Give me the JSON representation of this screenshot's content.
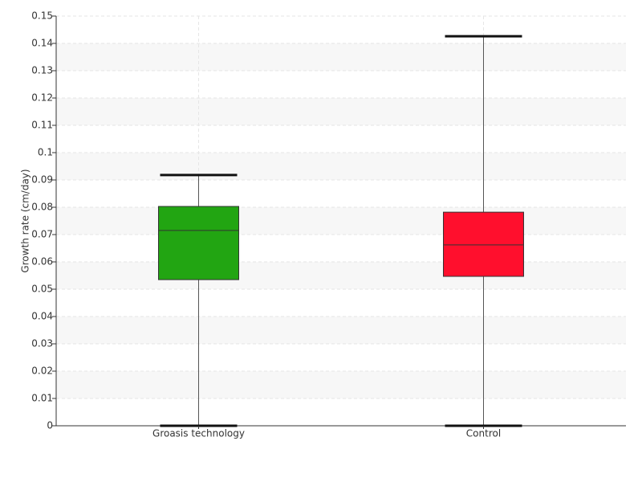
{
  "chart_data": {
    "type": "box",
    "y_label": "Growth rate (cm/day)",
    "categories": [
      "Groasis technology",
      "Control"
    ],
    "boxes": [
      {
        "min": 0,
        "q1": 0.0535,
        "median": 0.0715,
        "q3": 0.0803,
        "max": 0.0918,
        "color": "#22a512"
      },
      {
        "min": 0,
        "q1": 0.0547,
        "median": 0.0662,
        "q3": 0.0782,
        "max": 0.1426,
        "color": "#ff0f2d"
      }
    ],
    "ylim": [
      0,
      0.15
    ],
    "yticks": [
      0,
      0.01,
      0.02,
      0.03,
      0.04,
      0.05,
      0.06,
      0.07,
      0.08,
      0.09,
      0.1,
      0.11,
      0.12,
      0.13,
      0.14,
      0.15
    ],
    "grid": true
  }
}
